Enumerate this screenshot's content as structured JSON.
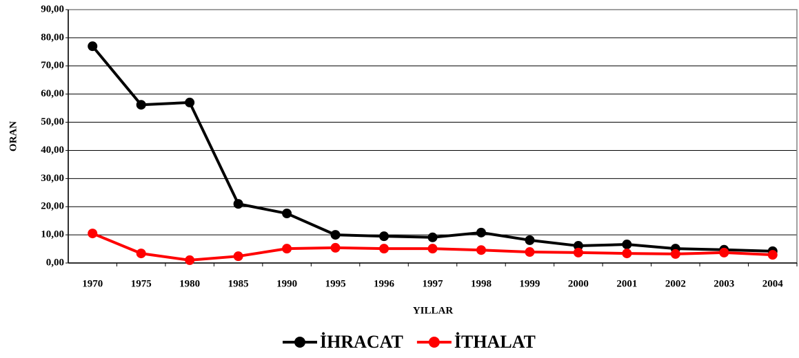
{
  "chart_data": {
    "type": "line",
    "y_label": "ORAN",
    "x_label": "YILLAR",
    "categories": [
      "1970",
      "1975",
      "1980",
      "1985",
      "1990",
      "1995",
      "1996",
      "1997",
      "1998",
      "1999",
      "2000",
      "2001",
      "2002",
      "2003",
      "2004"
    ],
    "series": [
      {
        "name": "İHRACAT",
        "color": "#000000",
        "values": [
          77.0,
          56.2,
          57.0,
          21.0,
          17.6,
          10.0,
          9.5,
          9.1,
          10.8,
          8.1,
          6.1,
          6.6,
          5.1,
          4.7,
          4.2
        ]
      },
      {
        "name": "İTHALAT",
        "color": "#ff0000",
        "values": [
          10.5,
          3.4,
          1.0,
          2.4,
          5.1,
          5.4,
          5.1,
          5.1,
          4.6,
          3.9,
          3.7,
          3.4,
          3.2,
          3.7,
          2.9
        ]
      }
    ],
    "ylim": [
      0,
      90
    ],
    "yticks": [
      {
        "value": 0,
        "label": "0,00"
      },
      {
        "value": 10,
        "label": "10,00"
      },
      {
        "value": 20,
        "label": "20,00"
      },
      {
        "value": 30,
        "label": "30,00"
      },
      {
        "value": 40,
        "label": "40,00"
      },
      {
        "value": 50,
        "label": "50,00"
      },
      {
        "value": 60,
        "label": "60,00"
      },
      {
        "value": 70,
        "label": "70,00"
      },
      {
        "value": 80,
        "label": "80,00"
      },
      {
        "value": 90,
        "label": "90,00"
      }
    ],
    "grid": true,
    "legend": "bottom"
  }
}
